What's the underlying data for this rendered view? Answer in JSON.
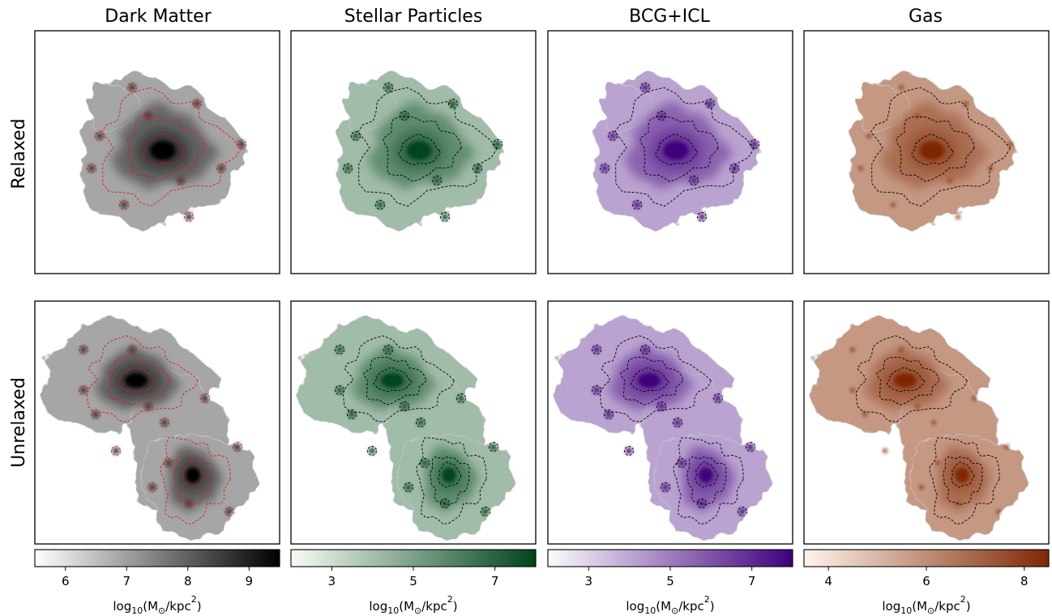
{
  "columns": [
    {
      "key": "dm",
      "title": "Dark Matter",
      "colormap": [
        "#ffffff",
        "#000000"
      ],
      "contour_color": "#e31a1c"
    },
    {
      "key": "stars",
      "title": "Stellar Particles",
      "colormap": [
        "#f7fcf5",
        "#00441b"
      ],
      "contour_color": "#000000"
    },
    {
      "key": "bcg",
      "title": "BCG+ICL",
      "colormap": [
        "#fcfbfd",
        "#3f007d"
      ],
      "contour_color": "#000000"
    },
    {
      "key": "gas",
      "title": "Gas",
      "colormap": [
        "#fff5eb",
        "#7f2704"
      ],
      "contour_color": "#000000"
    }
  ],
  "rows": [
    {
      "key": "relaxed",
      "label": "Relaxed"
    },
    {
      "key": "unrelaxed",
      "label": "Unrelaxed"
    }
  ],
  "chart_data": [
    {
      "type": "heatmap",
      "panel": "colorbar-dark-matter",
      "xlabel_base": "log",
      "xlabel_sub": "10",
      "xlabel_unit": "(M",
      "xlabel_sun": "⊙",
      "xlabel_tail": "/kpc",
      "xlabel_sup": "2",
      "xlabel_close": ")",
      "range": [
        5.5,
        9.5
      ],
      "ticks": [
        6,
        7,
        8,
        9
      ]
    },
    {
      "type": "heatmap",
      "panel": "colorbar-stellar-particles",
      "xlabel_base": "log",
      "xlabel_sub": "10",
      "xlabel_unit": "(M",
      "xlabel_sun": "⊙",
      "xlabel_tail": "/kpc",
      "xlabel_sup": "2",
      "xlabel_close": ")",
      "range": [
        2,
        8
      ],
      "ticks": [
        3,
        5,
        7
      ]
    },
    {
      "type": "heatmap",
      "panel": "colorbar-bcg-icl",
      "xlabel_base": "log",
      "xlabel_sub": "10",
      "xlabel_unit": "(M",
      "xlabel_sun": "⊙",
      "xlabel_tail": "/kpc",
      "xlabel_sup": "2",
      "xlabel_close": ")",
      "range": [
        2,
        8
      ],
      "ticks": [
        3,
        5,
        7
      ]
    },
    {
      "type": "heatmap",
      "panel": "colorbar-gas",
      "xlabel_base": "log",
      "xlabel_sub": "10",
      "xlabel_unit": "(M",
      "xlabel_sun": "⊙",
      "xlabel_tail": "/kpc",
      "xlabel_sup": "2",
      "xlabel_close": ")",
      "range": [
        3.5,
        8.5
      ],
      "ticks": [
        4,
        6,
        8
      ]
    }
  ]
}
